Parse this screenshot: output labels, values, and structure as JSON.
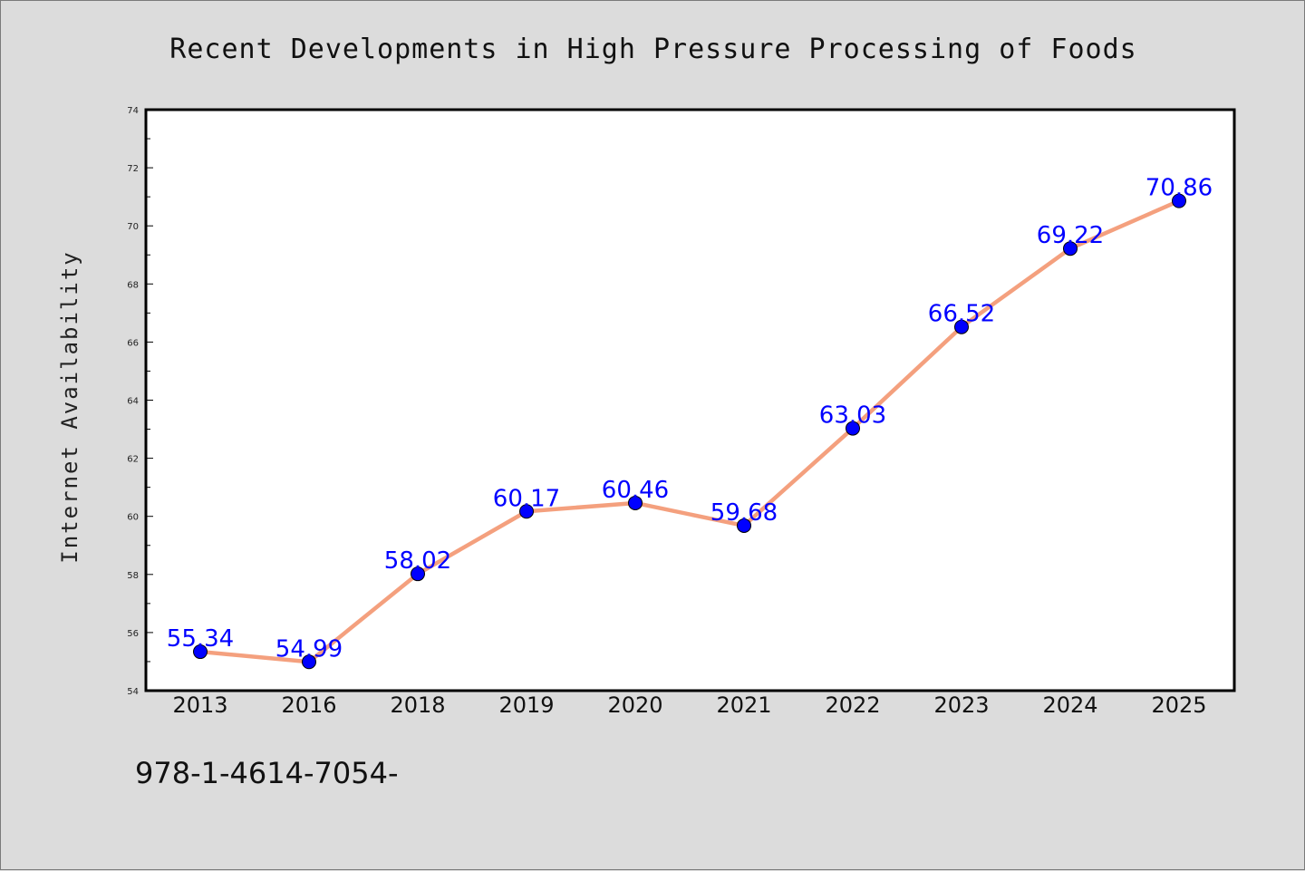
{
  "footer_text": "978-1-4614-7054-",
  "colors": {
    "background": "#dcdcdc",
    "plot_background": "#ffffff",
    "line": "#f4a07e",
    "marker": "#0000ff",
    "data_label": "#0000ff"
  },
  "chart_data": {
    "type": "line",
    "title": "Recent Developments in High Pressure Processing of Foods",
    "xlabel": "",
    "ylabel": "Internet Availability",
    "categories": [
      "2013",
      "2016",
      "2018",
      "2019",
      "2020",
      "2021",
      "2022",
      "2023",
      "2024",
      "2025"
    ],
    "series": [
      {
        "values": [
          55.34,
          54.99,
          58.02,
          60.17,
          60.46,
          59.68,
          63.03,
          66.52,
          69.22,
          70.86
        ],
        "labels": [
          "55.34",
          "54.99",
          "58.02",
          "60.17",
          "60.46",
          "59.68",
          "63.03",
          "66.52",
          "69.22",
          "70.86"
        ]
      }
    ],
    "ylim": [
      54,
      74
    ],
    "yticks": [
      54,
      56,
      58,
      60,
      62,
      64,
      66,
      68,
      70,
      72,
      74
    ],
    "grid": false,
    "legend": "none"
  }
}
